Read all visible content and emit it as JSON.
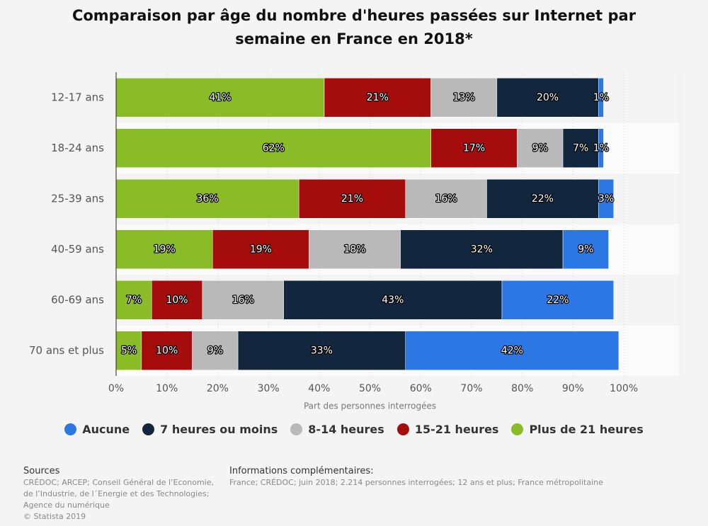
{
  "chart_data": {
    "type": "stacked-bar-horizontal",
    "title": "Comparaison par âge du nombre d'heures passées sur Internet par semaine en France en 2018*",
    "x_label": "Part des personnes interrogées",
    "categories": [
      "12-17 ans",
      "18-24 ans",
      "25-39 ans",
      "40-59 ans",
      "60-69 ans",
      "70 ans et plus"
    ],
    "series": [
      {
        "name": "Aucune",
        "color": "#2b78e4",
        "values": [
          1,
          1,
          3,
          9,
          22,
          42
        ],
        "value_labels": [
          "1%",
          "1%",
          "3%",
          "9%",
          "22%",
          "42%"
        ]
      },
      {
        "name": "7 heures ou moins",
        "color": "#12263e",
        "values": [
          20,
          7,
          22,
          32,
          43,
          33
        ],
        "value_labels": [
          "20%",
          "7%",
          "22%",
          "32%",
          "43%",
          "33%"
        ]
      },
      {
        "name": "8-14 heures",
        "color": "#b9b9b9",
        "values": [
          13,
          9,
          16,
          18,
          16,
          9
        ],
        "value_labels": [
          "13%",
          "9%",
          "16%",
          "18%",
          "16%",
          "9%"
        ]
      },
      {
        "name": "15-21 heures",
        "color": "#a50d0d",
        "values": [
          21,
          17,
          21,
          19,
          10,
          10
        ],
        "value_labels": [
          "21%",
          "17%",
          "21%",
          "19%",
          "10%",
          "10%"
        ]
      },
      {
        "name": "Plus de 21 heures",
        "color": "#89bc27",
        "values": [
          41,
          62,
          36,
          19,
          7,
          5
        ],
        "value_labels": [
          "41%",
          "62%",
          "36%",
          "19%",
          "7%",
          "5%"
        ]
      }
    ],
    "xlim": [
      0,
      111
    ],
    "xticks": [
      {
        "value": 0,
        "label": "0%"
      },
      {
        "value": 10,
        "label": "10%"
      },
      {
        "value": 20,
        "label": "20%"
      },
      {
        "value": 30,
        "label": "30%"
      },
      {
        "value": 40,
        "label": "40%"
      },
      {
        "value": 50,
        "label": "50%"
      },
      {
        "value": 60,
        "label": "60%"
      },
      {
        "value": 70,
        "label": "70%"
      },
      {
        "value": 80,
        "label": "80%"
      },
      {
        "value": 90,
        "label": "90%"
      },
      {
        "value": 100,
        "label": "100%"
      }
    ],
    "grid": true,
    "sources_title": "Sources",
    "sources_text": "CRÉDOC; ARCEP; Conseil Général de l’Economie, de l’Industrie, de l´Energie et des Technologies; Agence du numérique",
    "copyright": "© Statista 2019",
    "info_title": "Informations complémentaires:",
    "info_text": "France; CRÉDOC; juin 2018; 2.214 personnes interrogées; 12 ans et plus; France métropolitaine"
  }
}
